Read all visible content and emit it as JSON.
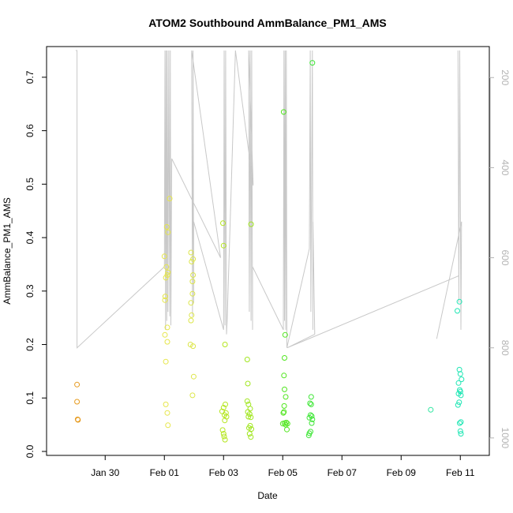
{
  "chart_data": {
    "type": "scatter",
    "title": "ATOM2 Southbound AmmBalance_PM1_AMS",
    "xlabel": "Date",
    "ylabel": "AmmBalance_PM1_AMS",
    "x_ticks": [
      "Jan 30",
      "Feb 01",
      "Feb 03",
      "Feb 05",
      "Feb 07",
      "Feb 09",
      "Feb 11"
    ],
    "x_tick_days": [
      -2,
      0,
      2,
      4,
      6,
      8,
      10
    ],
    "xlim_days": [
      -3.5,
      10.5
    ],
    "ylim": [
      0,
      0.75
    ],
    "y_ticks": [
      0.0,
      0.1,
      0.2,
      0.3,
      0.4,
      0.5,
      0.6,
      0.7
    ],
    "y_tick_labels": [
      "0.0",
      "0.1",
      "0.2",
      "0.3",
      "0.4",
      "0.5",
      "0.6",
      "0.7"
    ],
    "right_axis": {
      "ylim": [
        1030,
        140
      ],
      "ticks": [
        200,
        400,
        600,
        800,
        1000
      ],
      "color": "#b3b3b3"
    },
    "grid": false,
    "legend": "none",
    "colors": {
      "line": "#c8c8c8",
      "points_early": "#e69a1e",
      "points_feb01": "#e0e64a",
      "points_feb03": "#b4e61e",
      "points_feb05": "#50e61e",
      "points_late": "#1ee6b4"
    },
    "points": [
      {
        "x": -2.95,
        "y": 0.125,
        "c": "#e69a1e"
      },
      {
        "x": -2.95,
        "y": 0.093,
        "c": "#e69a1e"
      },
      {
        "x": -2.93,
        "y": 0.06,
        "c": "#e69a1e"
      },
      {
        "x": -2.92,
        "y": 0.059,
        "c": "#e69a1e"
      },
      {
        "x": 0.08,
        "y": 0.42,
        "c": "#e6e64a"
      },
      {
        "x": 0.12,
        "y": 0.41,
        "c": "#e6e64a"
      },
      {
        "x": 0.18,
        "y": 0.473,
        "c": "#e6e64a"
      },
      {
        "x": 0.0,
        "y": 0.365,
        "c": "#e6e64a"
      },
      {
        "x": 0.07,
        "y": 0.345,
        "c": "#e6e64a"
      },
      {
        "x": 0.12,
        "y": 0.335,
        "c": "#e6e64a"
      },
      {
        "x": 0.05,
        "y": 0.325,
        "c": "#e6e64a"
      },
      {
        "x": 0.1,
        "y": 0.33,
        "c": "#e6e64a"
      },
      {
        "x": 0.03,
        "y": 0.29,
        "c": "#e6e64a"
      },
      {
        "x": 0.02,
        "y": 0.283,
        "c": "#e6e64a"
      },
      {
        "x": 0.1,
        "y": 0.232,
        "c": "#e6e64a"
      },
      {
        "x": 0.02,
        "y": 0.218,
        "c": "#e6e64a"
      },
      {
        "x": 0.1,
        "y": 0.205,
        "c": "#e6e64a"
      },
      {
        "x": 0.05,
        "y": 0.168,
        "c": "#e6e64a"
      },
      {
        "x": 0.05,
        "y": 0.088,
        "c": "#e6e64a"
      },
      {
        "x": 0.1,
        "y": 0.072,
        "c": "#e6e64a"
      },
      {
        "x": 0.12,
        "y": 0.049,
        "c": "#e6e64a"
      },
      {
        "x": 0.9,
        "y": 0.372,
        "c": "#dde64a"
      },
      {
        "x": 0.97,
        "y": 0.36,
        "c": "#dde64a"
      },
      {
        "x": 0.92,
        "y": 0.355,
        "c": "#dde64a"
      },
      {
        "x": 0.97,
        "y": 0.33,
        "c": "#dde64a"
      },
      {
        "x": 0.95,
        "y": 0.318,
        "c": "#dde64a"
      },
      {
        "x": 0.95,
        "y": 0.295,
        "c": "#dde64a"
      },
      {
        "x": 0.9,
        "y": 0.278,
        "c": "#dde64a"
      },
      {
        "x": 0.92,
        "y": 0.255,
        "c": "#dde64a"
      },
      {
        "x": 0.9,
        "y": 0.245,
        "c": "#dde64a"
      },
      {
        "x": 0.88,
        "y": 0.2,
        "c": "#dde64a"
      },
      {
        "x": 0.97,
        "y": 0.197,
        "c": "#dde64a"
      },
      {
        "x": 0.99,
        "y": 0.14,
        "c": "#dde64a"
      },
      {
        "x": 0.95,
        "y": 0.105,
        "c": "#dde64a"
      },
      {
        "x": 1.98,
        "y": 0.427,
        "c": "#b4e61e"
      },
      {
        "x": 2.0,
        "y": 0.385,
        "c": "#b4e61e"
      },
      {
        "x": 2.05,
        "y": 0.2,
        "c": "#b4e61e"
      },
      {
        "x": 2.06,
        "y": 0.088,
        "c": "#b4e61e"
      },
      {
        "x": 2.0,
        "y": 0.082,
        "c": "#b4e61e"
      },
      {
        "x": 1.95,
        "y": 0.075,
        "c": "#b4e61e"
      },
      {
        "x": 2.08,
        "y": 0.072,
        "c": "#b4e61e"
      },
      {
        "x": 2.03,
        "y": 0.068,
        "c": "#b4e61e"
      },
      {
        "x": 2.1,
        "y": 0.065,
        "c": "#b4e61e"
      },
      {
        "x": 2.04,
        "y": 0.058,
        "c": "#b4e61e"
      },
      {
        "x": 1.97,
        "y": 0.04,
        "c": "#b4e61e"
      },
      {
        "x": 2.0,
        "y": 0.033,
        "c": "#b4e61e"
      },
      {
        "x": 2.02,
        "y": 0.028,
        "c": "#b4e61e"
      },
      {
        "x": 2.05,
        "y": 0.022,
        "c": "#b4e61e"
      },
      {
        "x": 2.93,
        "y": 0.425,
        "c": "#a0e61e"
      },
      {
        "x": 2.8,
        "y": 0.172,
        "c": "#a0e61e"
      },
      {
        "x": 2.82,
        "y": 0.127,
        "c": "#a0e61e"
      },
      {
        "x": 2.8,
        "y": 0.094,
        "c": "#a0e61e"
      },
      {
        "x": 2.84,
        "y": 0.088,
        "c": "#a0e61e"
      },
      {
        "x": 2.9,
        "y": 0.08,
        "c": "#a0e61e"
      },
      {
        "x": 2.82,
        "y": 0.074,
        "c": "#a0e61e"
      },
      {
        "x": 2.88,
        "y": 0.07,
        "c": "#a0e61e"
      },
      {
        "x": 2.84,
        "y": 0.065,
        "c": "#a0e61e"
      },
      {
        "x": 2.92,
        "y": 0.064,
        "c": "#a0e61e"
      },
      {
        "x": 2.9,
        "y": 0.048,
        "c": "#a0e61e"
      },
      {
        "x": 2.86,
        "y": 0.044,
        "c": "#a0e61e"
      },
      {
        "x": 2.94,
        "y": 0.042,
        "c": "#a0e61e"
      },
      {
        "x": 2.88,
        "y": 0.033,
        "c": "#a0e61e"
      },
      {
        "x": 2.92,
        "y": 0.027,
        "c": "#a0e61e"
      },
      {
        "x": 4.03,
        "y": 0.635,
        "c": "#50e61e"
      },
      {
        "x": 4.08,
        "y": 0.218,
        "c": "#50e61e"
      },
      {
        "x": 4.06,
        "y": 0.175,
        "c": "#50e61e"
      },
      {
        "x": 4.04,
        "y": 0.142,
        "c": "#50e61e"
      },
      {
        "x": 4.06,
        "y": 0.116,
        "c": "#50e61e"
      },
      {
        "x": 4.1,
        "y": 0.102,
        "c": "#50e61e"
      },
      {
        "x": 4.05,
        "y": 0.085,
        "c": "#50e61e"
      },
      {
        "x": 4.04,
        "y": 0.074,
        "c": "#50e61e"
      },
      {
        "x": 4.02,
        "y": 0.072,
        "c": "#50e61e"
      },
      {
        "x": 4.0,
        "y": 0.052,
        "c": "#50e61e"
      },
      {
        "x": 4.06,
        "y": 0.053,
        "c": "#50e61e"
      },
      {
        "x": 4.12,
        "y": 0.054,
        "c": "#50e61e"
      },
      {
        "x": 4.16,
        "y": 0.052,
        "c": "#50e61e"
      },
      {
        "x": 4.1,
        "y": 0.05,
        "c": "#50e61e"
      },
      {
        "x": 4.14,
        "y": 0.041,
        "c": "#50e61e"
      },
      {
        "x": 5.0,
        "y": 0.727,
        "c": "#3ee636"
      },
      {
        "x": 4.96,
        "y": 0.102,
        "c": "#3ee636"
      },
      {
        "x": 4.92,
        "y": 0.09,
        "c": "#3ee636"
      },
      {
        "x": 4.96,
        "y": 0.088,
        "c": "#3ee636"
      },
      {
        "x": 4.94,
        "y": 0.068,
        "c": "#3ee636"
      },
      {
        "x": 4.98,
        "y": 0.066,
        "c": "#3ee636"
      },
      {
        "x": 4.9,
        "y": 0.063,
        "c": "#3ee636"
      },
      {
        "x": 5.0,
        "y": 0.06,
        "c": "#3ee636"
      },
      {
        "x": 4.98,
        "y": 0.053,
        "c": "#3ee636"
      },
      {
        "x": 4.94,
        "y": 0.037,
        "c": "#3ee636"
      },
      {
        "x": 4.9,
        "y": 0.034,
        "c": "#3ee636"
      },
      {
        "x": 4.88,
        "y": 0.03,
        "c": "#3ee636"
      },
      {
        "x": 9.0,
        "y": 0.078,
        "c": "#2ee6a0"
      },
      {
        "x": 9.97,
        "y": 0.28,
        "c": "#1ee6b4"
      },
      {
        "x": 9.9,
        "y": 0.263,
        "c": "#1ee6b4"
      },
      {
        "x": 9.97,
        "y": 0.153,
        "c": "#1ee6b4"
      },
      {
        "x": 10.0,
        "y": 0.145,
        "c": "#1ee6b4"
      },
      {
        "x": 10.04,
        "y": 0.135,
        "c": "#1ee6b4"
      },
      {
        "x": 9.94,
        "y": 0.128,
        "c": "#1ee6b4"
      },
      {
        "x": 9.98,
        "y": 0.115,
        "c": "#1ee6b4"
      },
      {
        "x": 10.0,
        "y": 0.112,
        "c": "#1ee6b4"
      },
      {
        "x": 9.94,
        "y": 0.108,
        "c": "#1ee6b4"
      },
      {
        "x": 10.02,
        "y": 0.105,
        "c": "#1ee6b4"
      },
      {
        "x": 9.96,
        "y": 0.092,
        "c": "#1ee6b4"
      },
      {
        "x": 9.92,
        "y": 0.087,
        "c": "#1ee6b4"
      },
      {
        "x": 10.02,
        "y": 0.055,
        "c": "#1ee6b4"
      },
      {
        "x": 9.98,
        "y": 0.053,
        "c": "#1ee6b4"
      },
      {
        "x": 10.0,
        "y": 0.038,
        "c": "#1ee6b4"
      },
      {
        "x": 10.02,
        "y": 0.033,
        "c": "#1ee6b4"
      }
    ],
    "line_series": {
      "name": "",
      "axis": "right",
      "points": [
        [
          -3.0,
          140
        ],
        [
          -2.95,
          140
        ],
        [
          -2.95,
          800
        ],
        [
          0.0,
          620
        ],
        [
          0.02,
          140
        ],
        [
          0.04,
          760
        ],
        [
          0.06,
          140
        ],
        [
          0.08,
          740
        ],
        [
          0.1,
          140
        ],
        [
          0.12,
          720
        ],
        [
          0.15,
          140
        ],
        [
          0.18,
          730
        ],
        [
          0.2,
          140
        ],
        [
          0.22,
          750
        ],
        [
          0.25,
          380
        ],
        [
          1.9,
          600
        ],
        [
          0.92,
          140
        ],
        [
          0.95,
          730
        ],
        [
          0.97,
          140
        ],
        [
          0.99,
          700
        ],
        [
          0.99,
          520
        ],
        [
          2.0,
          760
        ],
        [
          2.02,
          140
        ],
        [
          2.05,
          750
        ],
        [
          2.07,
          140
        ],
        [
          2.1,
          770
        ],
        [
          2.12,
          740
        ],
        [
          2.4,
          140
        ],
        [
          3.0,
          440
        ],
        [
          2.85,
          140
        ],
        [
          2.87,
          720
        ],
        [
          2.9,
          140
        ],
        [
          2.93,
          740
        ],
        [
          2.95,
          140
        ],
        [
          2.98,
          760
        ],
        [
          2.98,
          620
        ],
        [
          4.02,
          760
        ],
        [
          4.04,
          140
        ],
        [
          4.06,
          740
        ],
        [
          4.08,
          140
        ],
        [
          4.1,
          760
        ],
        [
          4.12,
          140
        ],
        [
          4.14,
          800
        ],
        [
          4.9,
          580
        ],
        [
          4.93,
          140
        ],
        [
          4.95,
          720
        ],
        [
          5.0,
          140
        ],
        [
          5.02,
          760
        ],
        [
          5.02,
          520
        ],
        [
          5.08,
          770
        ],
        [
          4.15,
          800
        ],
        [
          9.95,
          640
        ],
        [
          9.92,
          140
        ],
        [
          9.95,
          700
        ],
        [
          9.98,
          140
        ],
        [
          10.02,
          760
        ],
        [
          10.04,
          520
        ],
        [
          9.2,
          780
        ]
      ]
    }
  }
}
